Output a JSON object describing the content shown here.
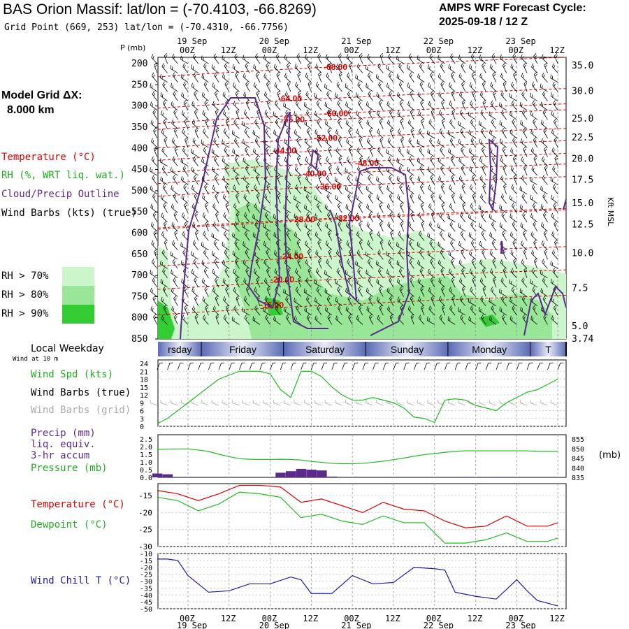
{
  "header": {
    "title": "BAS Orion Massif:  lat/lon = (-70.4103, -66.8269)",
    "subtitle": "Grid Point (669, 253) lat/lon = (-70.4310, -66.7756)",
    "cycle_line1": "AMPS WRF Forecast Cycle:",
    "cycle_line2": "2025-09-18 / 12  Z"
  },
  "side": {
    "model_grid_line1": "Model Grid ΔX:",
    "model_grid_line2": "8.000 km",
    "temperature": "Temperature (°C)",
    "rh": "RH (%, WRT liq. wat.)",
    "cloud": "Cloud/Precip Outline",
    "wind_barbs": "Wind Barbs (kts) (true)",
    "rh70": "RH > 70%",
    "rh80": "RH > 80%",
    "rh90": "RH > 90%",
    "local_weekday": "Local Weekday",
    "wind_10m": "Wind at 10 m",
    "wind_spd": "Wind Spd (kts)",
    "wind_barbs_true": "Wind Barbs (true)",
    "wind_barbs_grid": "Wind Barbs (grid)",
    "precip1": "Precip (mm)",
    "precip2": "liq. equiv.",
    "precip3": "3-hr accum",
    "pressure": "Pressure (mb)",
    "temp2": "Temperature (°C)",
    "dewpoint": "Dewpoint (°C)",
    "windchill": "Wind Chill T (°C)",
    "p_mb": "P (mb)",
    "kft": "Kft MSL",
    "mb_unit": "(mb)"
  },
  "colors": {
    "temperature": "#e00000",
    "rh70": "#ccf5cc",
    "rh80": "#99e699",
    "rh90": "#33cc33",
    "cloud": "#5a2a8c",
    "wind_spd": "#22bb22",
    "grid_barbs": "#aaaaaa",
    "precip": "#5a2a8c",
    "windchill": "#1a1aaa",
    "weekday_bar": "#5b6bb5"
  },
  "time_axis": {
    "hour_labels": [
      "00Z",
      "12Z",
      "00Z",
      "12Z",
      "00Z",
      "12Z",
      "00Z",
      "12Z",
      "00Z",
      "12Z"
    ],
    "date_labels": [
      "19 Sep",
      "20 Sep",
      "21 Sep",
      "22 Sep",
      "23 Sep"
    ],
    "weekdays": [
      "rsday",
      "Friday",
      "Saturday",
      "Sunday",
      "Monday",
      "T"
    ]
  },
  "chart_data": [
    {
      "type": "heatmap",
      "name": "time-height cross section",
      "y_ticks_mb": [
        "200",
        "250",
        "300",
        "350",
        "400",
        "450",
        "500",
        "550",
        "600",
        "650",
        "700",
        "750",
        "800",
        "850"
      ],
      "kft_ticks": [
        "35.0",
        "30.0",
        "25.0",
        "22.5",
        "20.0",
        "17.5",
        "15.0",
        "12.5",
        "10.0",
        "7.5",
        "5.0",
        "3.74"
      ],
      "temperature_contours": [
        {
          "label": "-68.00",
          "p": 208
        },
        {
          "label": "-64.00",
          "p": 282
        },
        {
          "label": "-60.00",
          "p": 318
        },
        {
          "label": "-56.00",
          "p": 332
        },
        {
          "label": "-52.00",
          "p": 376
        },
        {
          "label": "-48.00",
          "p": 435
        },
        {
          "label": "-44.00",
          "p": 405
        },
        {
          "label": "-40.00",
          "p": 460
        },
        {
          "label": "-36.00",
          "p": 490
        },
        {
          "label": "-32.00",
          "p": 565
        },
        {
          "label": "-28.00",
          "p": 568
        },
        {
          "label": "-24.00",
          "p": 655
        },
        {
          "label": "-20.00",
          "p": 710
        },
        {
          "label": "-16.00",
          "p": 770
        }
      ]
    },
    {
      "type": "line",
      "name": "wind speed 10 m",
      "y_ticks": [
        "24",
        "21",
        "18",
        "15",
        "12",
        "9",
        "6",
        "3",
        "0"
      ],
      "ylim": [
        0,
        24
      ],
      "x": [
        -9,
        -6,
        -3,
        0,
        3,
        6,
        9,
        12,
        15,
        18,
        21,
        24,
        27,
        30,
        33,
        36,
        39,
        42,
        45,
        48,
        51,
        54,
        57,
        60,
        63,
        66,
        69,
        72,
        75,
        78,
        81,
        84,
        87,
        90,
        93,
        96,
        99,
        102,
        105,
        108
      ],
      "values": [
        1,
        3,
        6,
        9,
        12,
        15,
        18,
        19.5,
        21,
        21,
        21,
        20,
        14,
        11,
        21,
        21,
        19,
        15,
        12,
        10,
        10,
        11,
        10,
        9,
        7,
        3.5,
        3,
        1.5,
        10,
        10.5,
        10,
        8,
        7,
        6,
        9,
        11,
        13,
        14,
        16,
        18
      ]
    },
    {
      "type": "line",
      "name": "pressure and precip",
      "precip_ticks": [
        "2.5",
        "2.0",
        "1.5",
        "1.0",
        "0.5",
        "0.0"
      ],
      "pressure_ticks": [
        "855",
        "850",
        "845",
        "840",
        "835"
      ],
      "x": [
        -9,
        -6,
        -3,
        0,
        3,
        6,
        9,
        12,
        15,
        18,
        21,
        24,
        27,
        30,
        33,
        36,
        39,
        42,
        45,
        48,
        51,
        54,
        57,
        60,
        63,
        66,
        69,
        72,
        75,
        78,
        81,
        84,
        87,
        90,
        93,
        96,
        99,
        102,
        105,
        108
      ],
      "pressure": [
        849.5,
        849.7,
        849.8,
        849.8,
        849.2,
        848.5,
        847.0,
        845.8,
        844.7,
        844.4,
        844.3,
        844.3,
        844.4,
        844.3,
        844.0,
        843.3,
        842.8,
        842.3,
        842.1,
        842.1,
        842.3,
        842.8,
        843.4,
        844.2,
        845.0,
        846.0,
        846.8,
        847.4,
        848.0,
        848.5,
        848.8,
        848.8,
        848.8,
        848.8,
        848.8,
        848.8,
        848.8,
        848.5,
        848.5,
        848.5
      ],
      "precip_x": [
        -9,
        -6,
        27,
        30,
        33,
        36,
        39,
        42,
        81,
        90
      ],
      "precip": [
        0.25,
        0.2,
        0.3,
        0.4,
        0.55,
        0.5,
        0.45,
        0.05,
        0.03,
        0.03
      ]
    },
    {
      "type": "line",
      "name": "temperature and dewpoint",
      "y_ticks": [
        "-15",
        "-20",
        "-25",
        "-30"
      ],
      "ylim": [
        -30,
        -11.5
      ],
      "x": [
        -9,
        -3,
        3,
        9,
        15,
        21,
        27,
        33,
        39,
        45,
        51,
        57,
        63,
        69,
        75,
        81,
        87,
        93,
        99,
        105,
        108
      ],
      "temperature": [
        -13.5,
        -14.5,
        -16.5,
        -14.5,
        -12,
        -12,
        -12.5,
        -17,
        -16,
        -18,
        -20,
        -17,
        -19,
        -19.5,
        -22.5,
        -24.5,
        -24,
        -21,
        -24,
        -24,
        -23
      ],
      "dewpoint": [
        -15.5,
        -16.5,
        -19.5,
        -17.5,
        -14,
        -14.5,
        -15.5,
        -21.5,
        -20.5,
        -22.5,
        -23.5,
        -21,
        -23,
        -23,
        -29,
        -29,
        -28,
        -26,
        -28.5,
        -28.5,
        -27.5
      ]
    },
    {
      "type": "line",
      "name": "wind chill",
      "y_ticks": [
        "-10",
        "-15",
        "-20",
        "-25",
        "-30",
        "-35",
        "-40",
        "-45",
        "-50"
      ],
      "ylim": [
        -50,
        -10
      ],
      "x": [
        -9,
        -6,
        -3,
        0,
        6,
        12,
        18,
        24,
        30,
        33,
        36,
        42,
        48,
        54,
        60,
        66,
        72,
        75,
        78,
        84,
        90,
        96,
        99,
        102,
        105,
        108
      ],
      "values": [
        -14,
        -14,
        -15,
        -26,
        -38,
        -37,
        -32,
        -32,
        -27,
        -29,
        -39,
        -39,
        -26,
        -32,
        -31,
        -20,
        -21,
        -22,
        -38,
        -41,
        -43,
        -29,
        -37,
        -44,
        -46,
        -48
      ]
    }
  ]
}
